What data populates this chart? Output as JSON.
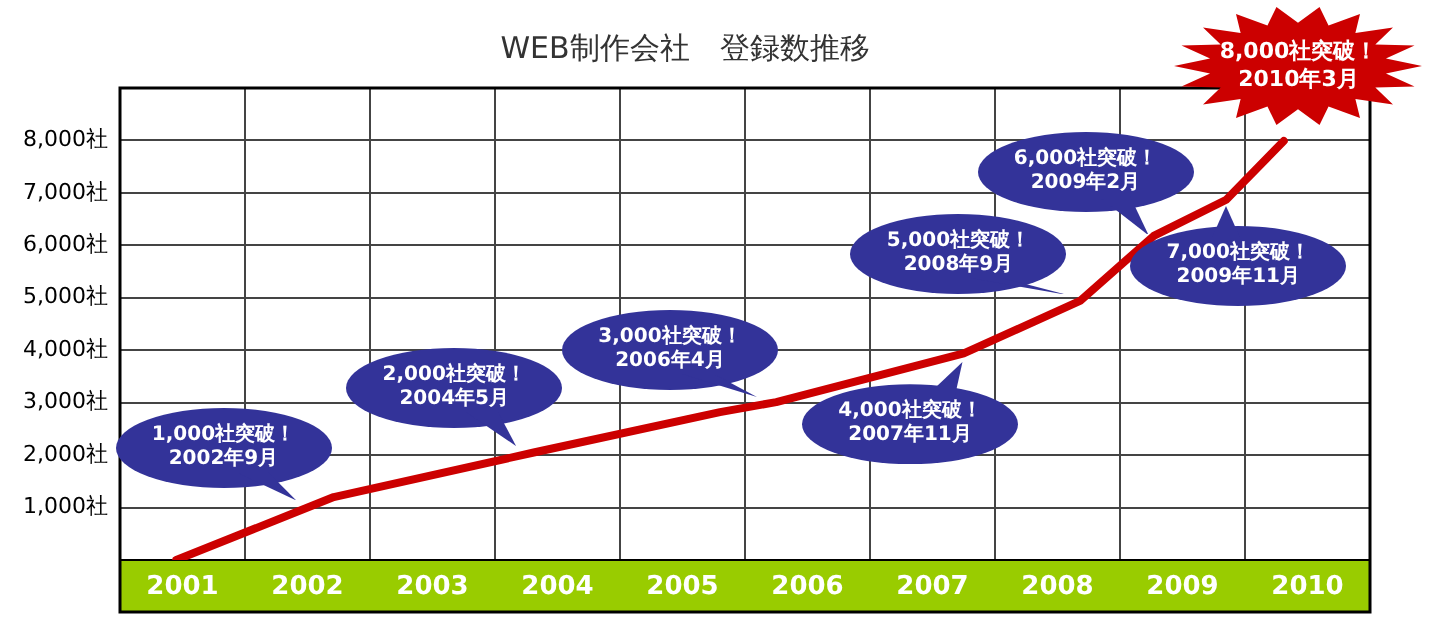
{
  "chart_data": {
    "type": "line",
    "title": "WEB制作会社　登録数推移",
    "x": [
      2001.45,
      2002.71,
      2004.31,
      2005.8,
      2006.25,
      2007.75,
      2008.68,
      2009.27,
      2009.85,
      2010.31
    ],
    "series": [
      {
        "color": "#cc0000",
        "values": [
          0,
          1200,
          2050,
          2820,
          3010,
          3940,
          4940,
          6180,
          6870,
          7990
        ]
      }
    ],
    "xlim": [
      2001,
      2011
    ],
    "xticks": [
      {
        "value": 2001.5,
        "label": "2001"
      },
      {
        "value": 2002.5,
        "label": "2002"
      },
      {
        "value": 2003.5,
        "label": "2003"
      },
      {
        "value": 2004.5,
        "label": "2004"
      },
      {
        "value": 2005.5,
        "label": "2005"
      },
      {
        "value": 2006.5,
        "label": "2006"
      },
      {
        "value": 2007.5,
        "label": "2007"
      },
      {
        "value": 2008.5,
        "label": "2008"
      },
      {
        "value": 2009.5,
        "label": "2009"
      },
      {
        "value": 2010.5,
        "label": "2010"
      }
    ],
    "ylim": [
      0,
      9000
    ],
    "yticks": [
      {
        "value": 1000,
        "label": "1,000社"
      },
      {
        "value": 2000,
        "label": "2,000社"
      },
      {
        "value": 3000,
        "label": "3,000社"
      },
      {
        "value": 4000,
        "label": "4,000社"
      },
      {
        "value": 5000,
        "label": "5,000社"
      },
      {
        "value": 6000,
        "label": "6,000社"
      },
      {
        "value": 7000,
        "label": "7,000社"
      },
      {
        "value": 8000,
        "label": "8,000社"
      }
    ],
    "grid": true,
    "marker": "none",
    "line_style": "solid",
    "annotations": [
      {
        "text": "1,000社突破！\n2002年9月",
        "x": 2002.5,
        "y": 1000
      },
      {
        "text": "2,000社突破！\n2004年5月",
        "x": 2004.25,
        "y": 2000
      },
      {
        "text": "3,000社突破！\n2006年4月",
        "x": 2006.2,
        "y": 3000
      },
      {
        "text": "4,000社突破！\n2007年11月",
        "x": 2007.8,
        "y": 4000
      },
      {
        "text": "5,000社突破！\n2008年9月",
        "x": 2008.7,
        "y": 5000
      },
      {
        "text": "6,000社突破！\n2009年2月",
        "x": 2009.3,
        "y": 6000
      },
      {
        "text": "7,000社突破！\n2009年11月",
        "x": 2009.85,
        "y": 7000
      },
      {
        "text": "8,000社突破！\n2010年3月",
        "x": 2010.3,
        "y": 8000
      }
    ]
  }
}
